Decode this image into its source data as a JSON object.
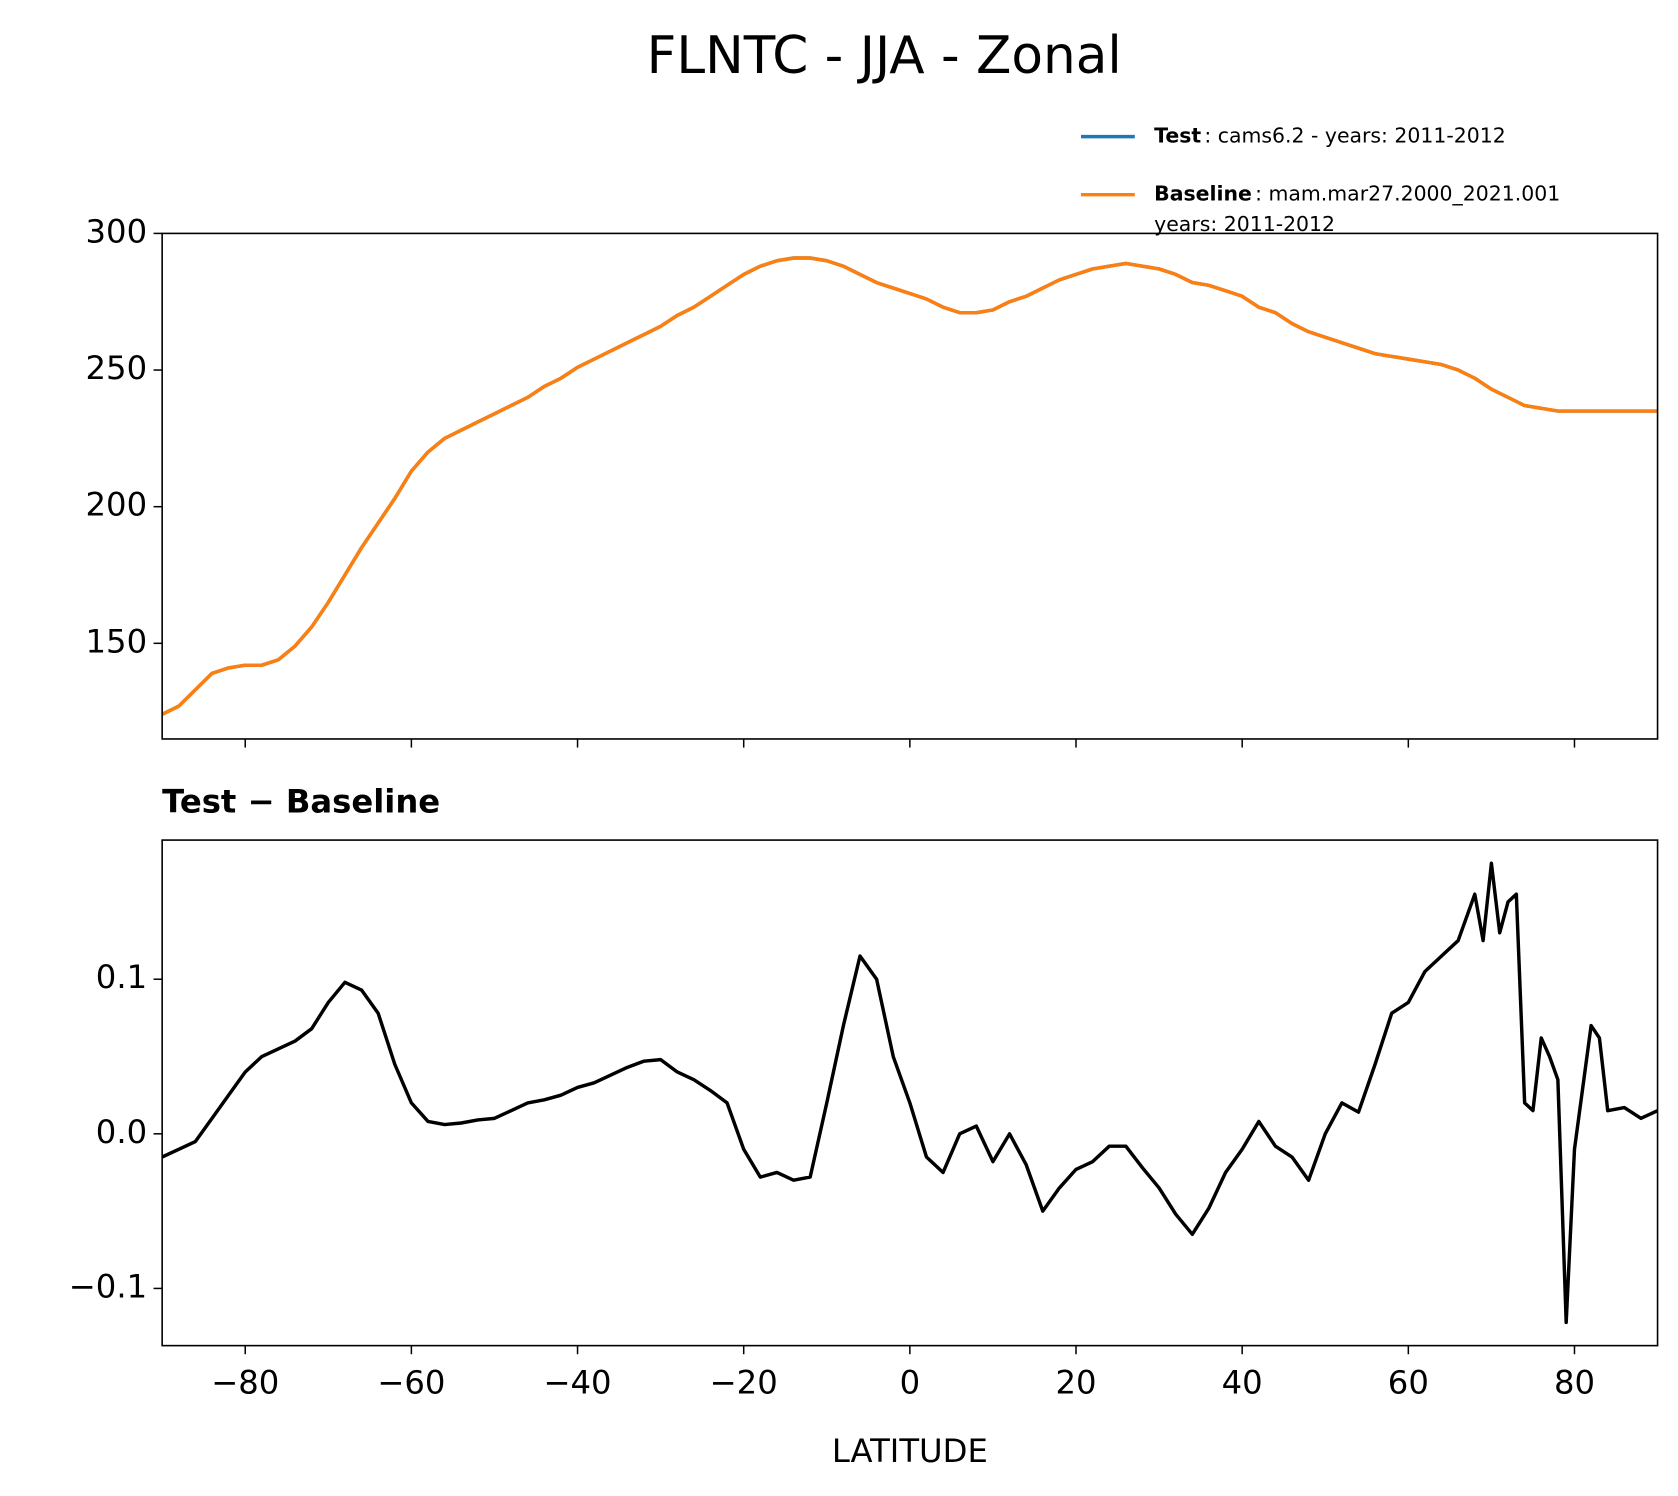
{
  "chart_data": [
    {
      "type": "line",
      "title": "FLNTC - JJA - Zonal",
      "x": [
        -90,
        -88,
        -86,
        -84,
        -82,
        -80,
        -78,
        -76,
        -74,
        -72,
        -70,
        -68,
        -66,
        -64,
        -62,
        -60,
        -58,
        -56,
        -54,
        -52,
        -50,
        -48,
        -46,
        -44,
        -42,
        -40,
        -38,
        -36,
        -34,
        -32,
        -30,
        -28,
        -26,
        -24,
        -22,
        -20,
        -18,
        -16,
        -14,
        -12,
        -10,
        -8,
        -6,
        -4,
        -2,
        0,
        2,
        4,
        6,
        8,
        10,
        12,
        14,
        16,
        18,
        20,
        22,
        24,
        26,
        28,
        30,
        32,
        34,
        36,
        38,
        40,
        42,
        44,
        46,
        48,
        50,
        52,
        54,
        56,
        58,
        60,
        62,
        64,
        66,
        68,
        70,
        72,
        74,
        76,
        78,
        80,
        82,
        84,
        86,
        88,
        90
      ],
      "series": [
        {
          "name": "Test",
          "description": [
            ": cams6.2 - years: 2011-2012"
          ],
          "color": "#1f77b4",
          "values": [
            124,
            127,
            133,
            139,
            141,
            142,
            142,
            144,
            149,
            156,
            165,
            175,
            185,
            194,
            203,
            213,
            220,
            225,
            228,
            231,
            234,
            237,
            240,
            244,
            247,
            251,
            254,
            257,
            260,
            263,
            266,
            270,
            273,
            277,
            281,
            285,
            288,
            290,
            291,
            291,
            290,
            288,
            285,
            282,
            280,
            278,
            276,
            273,
            271,
            271,
            272,
            275,
            277,
            280,
            283,
            285,
            287,
            288,
            289,
            288,
            287,
            285,
            282,
            281,
            279,
            277,
            273,
            271,
            267,
            264,
            262,
            260,
            258,
            256,
            255,
            254,
            253,
            252,
            250,
            247,
            243,
            240,
            237,
            236,
            235,
            235,
            235,
            235,
            235,
            235,
            235
          ]
        },
        {
          "name": "Baseline",
          "description": [
            ": mam.mar27.2000_2021.001",
            "years: 2011-2012"
          ],
          "color": "#ff7f0e",
          "values": [
            124,
            127,
            133,
            139,
            141,
            142,
            142,
            144,
            149,
            156,
            165,
            175,
            185,
            194,
            203,
            213,
            220,
            225,
            228,
            231,
            234,
            237,
            240,
            244,
            247,
            251,
            254,
            257,
            260,
            263,
            266,
            270,
            273,
            277,
            281,
            285,
            288,
            290,
            291,
            291,
            290,
            288,
            285,
            282,
            280,
            278,
            276,
            273,
            271,
            271,
            272,
            275,
            277,
            280,
            283,
            285,
            287,
            288,
            289,
            288,
            287,
            285,
            282,
            281,
            279,
            277,
            273,
            271,
            267,
            264,
            262,
            260,
            258,
            256,
            255,
            254,
            253,
            252,
            250,
            247,
            243,
            240,
            237,
            236,
            235,
            235,
            235,
            235,
            235,
            235,
            235
          ]
        }
      ],
      "xlim": [
        -90,
        90
      ],
      "xticks": [
        -80,
        -60,
        -40,
        -20,
        0,
        20,
        40,
        60,
        80
      ],
      "xtick_labels": false,
      "ylim": [
        115,
        300
      ],
      "yticks": [
        150,
        200,
        250,
        300
      ],
      "legend": "upper right"
    },
    {
      "type": "line",
      "title": "Test − Baseline",
      "xlabel": "LATITUDE",
      "x": [
        -90,
        -88,
        -86,
        -84,
        -82,
        -80,
        -78,
        -76,
        -74,
        -72,
        -70,
        -68,
        -66,
        -64,
        -62,
        -60,
        -58,
        -56,
        -54,
        -52,
        -50,
        -48,
        -46,
        -44,
        -42,
        -40,
        -38,
        -36,
        -34,
        -32,
        -30,
        -28,
        -26,
        -24,
        -22,
        -20,
        -18,
        -16,
        -14,
        -12,
        -10,
        -8,
        -6,
        -4,
        -2,
        0,
        2,
        4,
        6,
        8,
        10,
        12,
        14,
        16,
        18,
        20,
        22,
        24,
        26,
        28,
        30,
        32,
        34,
        36,
        38,
        40,
        42,
        44,
        46,
        48,
        50,
        52,
        54,
        56,
        58,
        60,
        62,
        64,
        66,
        68,
        69,
        70,
        71,
        72,
        73,
        74,
        75,
        76,
        77,
        78,
        79,
        80,
        82,
        83,
        84,
        86,
        88,
        90
      ],
      "series": [
        {
          "color": "#000000",
          "values": [
            -0.015,
            -0.01,
            -0.005,
            0.01,
            0.025,
            0.04,
            0.05,
            0.055,
            0.06,
            0.068,
            0.085,
            0.098,
            0.093,
            0.078,
            0.045,
            0.02,
            0.008,
            0.006,
            0.007,
            0.009,
            0.01,
            0.015,
            0.02,
            0.022,
            0.025,
            0.03,
            0.033,
            0.038,
            0.043,
            0.047,
            0.048,
            0.04,
            0.035,
            0.028,
            0.02,
            -0.01,
            -0.028,
            -0.025,
            -0.03,
            -0.028,
            0.02,
            0.07,
            0.115,
            0.1,
            0.05,
            0.02,
            -0.015,
            -0.025,
            0.0,
            0.005,
            -0.018,
            0.0,
            -0.02,
            -0.05,
            -0.035,
            -0.023,
            -0.018,
            -0.008,
            -0.008,
            -0.022,
            -0.035,
            -0.052,
            -0.065,
            -0.048,
            -0.025,
            -0.01,
            0.008,
            -0.008,
            -0.015,
            -0.03,
            0.0,
            0.02,
            0.014,
            0.045,
            0.078,
            0.085,
            0.105,
            0.115,
            0.125,
            0.155,
            0.125,
            0.175,
            0.13,
            0.15,
            0.155,
            0.02,
            0.015,
            0.062,
            0.05,
            0.035,
            -0.122,
            -0.01,
            0.07,
            0.062,
            0.015,
            0.017,
            0.01,
            0.015
          ]
        }
      ],
      "xlim": [
        -90,
        90
      ],
      "xticks": [
        {
          "value": -80,
          "label": "−80"
        },
        {
          "value": -60,
          "label": "−60"
        },
        {
          "value": -40,
          "label": "−40"
        },
        {
          "value": -20,
          "label": "−20"
        },
        0,
        20,
        40,
        60,
        80
      ],
      "ylim": [
        -0.137,
        0.19
      ],
      "yticks": [
        {
          "value": -0.1,
          "label": "−0.1"
        },
        {
          "value": 0,
          "label": "0.0"
        },
        0.1
      ]
    }
  ]
}
